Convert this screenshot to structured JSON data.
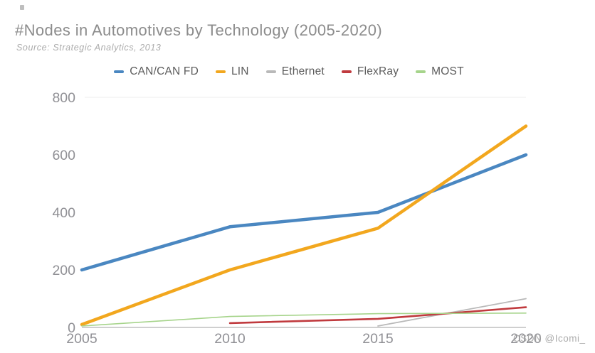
{
  "watermark": "CSDN @Icomi_",
  "chart_data": {
    "type": "line",
    "title": "#Nodes in Automotives by Technology (2005-2020)",
    "subtitle": "Source: Strategic Analytics, 2013",
    "x_range": [
      2005,
      2020
    ],
    "xticks": [
      2005,
      2010,
      2015,
      2020
    ],
    "ylim": [
      0,
      800
    ],
    "yticks": [
      0,
      200,
      400,
      600,
      800
    ],
    "xlabel": "",
    "ylabel": "",
    "grid": {
      "top_gridline_value": 800,
      "baseline_value": 0
    },
    "legend_position": "top-center",
    "axis_text_color": "#909095",
    "series": [
      {
        "name": "CAN/CAN FD",
        "color": "#4a87c1",
        "width": 4.5,
        "points": [
          [
            2005,
            200
          ],
          [
            2010,
            350
          ],
          [
            2015,
            400
          ],
          [
            2020,
            600
          ]
        ]
      },
      {
        "name": "LIN",
        "color": "#f2a71e",
        "width": 4.5,
        "points": [
          [
            2005,
            10
          ],
          [
            2010,
            200
          ],
          [
            2015,
            345
          ],
          [
            2020,
            700
          ]
        ]
      },
      {
        "name": "Ethernet",
        "color": "#b9b9b9",
        "width": 1.8,
        "points": [
          [
            2015,
            5
          ],
          [
            2020,
            100
          ]
        ]
      },
      {
        "name": "FlexRay",
        "color": "#c03a3e",
        "width": 2.6,
        "points": [
          [
            2010,
            15
          ],
          [
            2015,
            30
          ],
          [
            2020,
            70
          ]
        ]
      },
      {
        "name": "MOST",
        "color": "#a6d48b",
        "width": 1.6,
        "points": [
          [
            2005,
            5
          ],
          [
            2010,
            38
          ],
          [
            2015,
            48
          ],
          [
            2020,
            50
          ]
        ]
      }
    ]
  }
}
